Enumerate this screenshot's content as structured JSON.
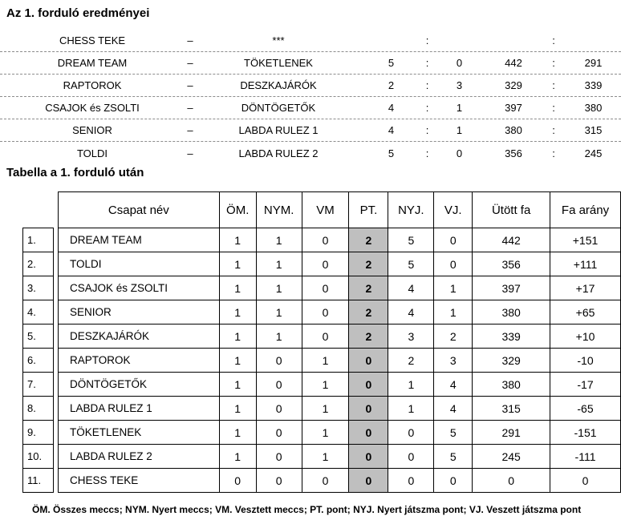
{
  "page": {
    "results_title": "Az 1. forduló eredményei",
    "standings_title": "Tabella a 1. forduló után",
    "legend": "ÖM. Összes meccs; NYM. Nyert meccs; VM. Vesztett meccs; PT. pont; NYJ. Nyert játszma pont; VJ. Veszett játszma pont"
  },
  "colors": {
    "pt_column_highlight": "#BFBFBF",
    "dotted_separator": "#8c8c8c"
  },
  "results": {
    "separator": "–",
    "colon": ":",
    "rows": [
      {
        "home": "CHESS TEKE",
        "away": "***",
        "score_home": "",
        "score_away": "",
        "pins_home": "",
        "pins_away": ""
      },
      {
        "home": "DREAM TEAM",
        "away": "TÖKETLENEK",
        "score_home": "5",
        "score_away": "0",
        "pins_home": "442",
        "pins_away": "291"
      },
      {
        "home": "RAPTOROK",
        "away": "DESZKAJÁRÓK",
        "score_home": "2",
        "score_away": "3",
        "pins_home": "329",
        "pins_away": "339"
      },
      {
        "home": "CSAJOK és ZSOLTI",
        "away": "DÖNTÖGETŐK",
        "score_home": "4",
        "score_away": "1",
        "pins_home": "397",
        "pins_away": "380"
      },
      {
        "home": "SENIOR",
        "away": "LABDA RULEZ 1",
        "score_home": "4",
        "score_away": "1",
        "pins_home": "380",
        "pins_away": "315"
      },
      {
        "home": "TOLDI",
        "away": "LABDA RULEZ 2",
        "score_home": "5",
        "score_away": "0",
        "pins_home": "356",
        "pins_away": "245"
      }
    ]
  },
  "standings": {
    "headers": {
      "name": "Csapat név",
      "om": "ÖM.",
      "nym": "NYM.",
      "vm": "VM",
      "pt": "PT.",
      "nyj": "NYJ.",
      "vj": "VJ.",
      "utott_fa": "Ütött fa",
      "fa_arany": "Fa arány"
    },
    "rows": [
      {
        "rank": "1.",
        "name": "DREAM TEAM",
        "om": "1",
        "nym": "1",
        "vm": "0",
        "pt": "2",
        "nyj": "5",
        "vj": "0",
        "utott_fa": "442",
        "fa_arany": "+151"
      },
      {
        "rank": "2.",
        "name": "TOLDI",
        "om": "1",
        "nym": "1",
        "vm": "0",
        "pt": "2",
        "nyj": "5",
        "vj": "0",
        "utott_fa": "356",
        "fa_arany": "+111"
      },
      {
        "rank": "3.",
        "name": "CSAJOK és ZSOLTI",
        "om": "1",
        "nym": "1",
        "vm": "0",
        "pt": "2",
        "nyj": "4",
        "vj": "1",
        "utott_fa": "397",
        "fa_arany": "+17"
      },
      {
        "rank": "4.",
        "name": "SENIOR",
        "om": "1",
        "nym": "1",
        "vm": "0",
        "pt": "2",
        "nyj": "4",
        "vj": "1",
        "utott_fa": "380",
        "fa_arany": "+65"
      },
      {
        "rank": "5.",
        "name": "DESZKAJÁRÓK",
        "om": "1",
        "nym": "1",
        "vm": "0",
        "pt": "2",
        "nyj": "3",
        "vj": "2",
        "utott_fa": "339",
        "fa_arany": "+10"
      },
      {
        "rank": "6.",
        "name": "RAPTOROK",
        "om": "1",
        "nym": "0",
        "vm": "1",
        "pt": "0",
        "nyj": "2",
        "vj": "3",
        "utott_fa": "329",
        "fa_arany": "-10"
      },
      {
        "rank": "7.",
        "name": "DÖNTÖGETŐK",
        "om": "1",
        "nym": "0",
        "vm": "1",
        "pt": "0",
        "nyj": "1",
        "vj": "4",
        "utott_fa": "380",
        "fa_arany": "-17"
      },
      {
        "rank": "8.",
        "name": "LABDA RULEZ 1",
        "om": "1",
        "nym": "0",
        "vm": "1",
        "pt": "0",
        "nyj": "1",
        "vj": "4",
        "utott_fa": "315",
        "fa_arany": "-65"
      },
      {
        "rank": "9.",
        "name": "TÖKETLENEK",
        "om": "1",
        "nym": "0",
        "vm": "1",
        "pt": "0",
        "nyj": "0",
        "vj": "5",
        "utott_fa": "291",
        "fa_arany": "-151"
      },
      {
        "rank": "10.",
        "name": "LABDA RULEZ 2",
        "om": "1",
        "nym": "0",
        "vm": "1",
        "pt": "0",
        "nyj": "0",
        "vj": "5",
        "utott_fa": "245",
        "fa_arany": "-111"
      },
      {
        "rank": "11.",
        "name": "CHESS TEKE",
        "om": "0",
        "nym": "0",
        "vm": "0",
        "pt": "0",
        "nyj": "0",
        "vj": "0",
        "utott_fa": "0",
        "fa_arany": "0"
      }
    ]
  }
}
